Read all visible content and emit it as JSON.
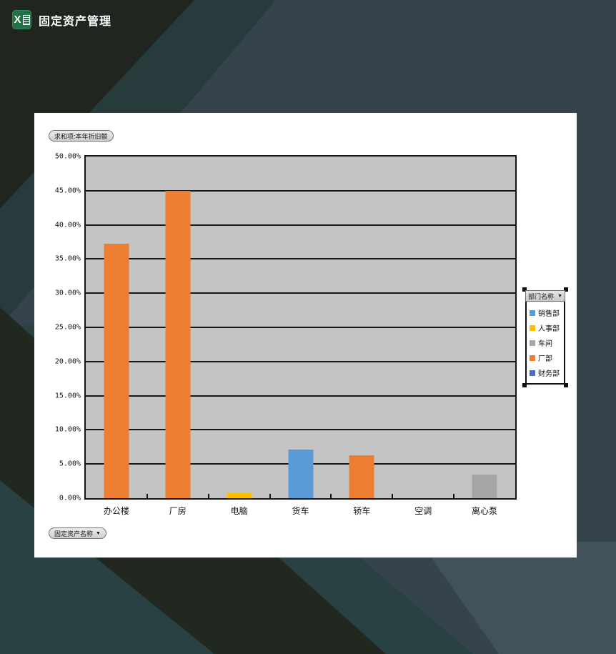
{
  "header": {
    "title": "固定资产管理"
  },
  "icons": {
    "dropdown_arrow": "▼",
    "excel_x": "X"
  },
  "chart": {
    "value_field_button": "求和项:本年折旧额",
    "axis_field_button": "固定资产名称",
    "legend": {
      "field_button": "部门名称",
      "items": [
        {
          "label": "销售部",
          "color": "#5B9BD5"
        },
        {
          "label": "人事部",
          "color": "#FFC000"
        },
        {
          "label": "车间",
          "color": "#A6A6A6"
        },
        {
          "label": "厂部",
          "color": "#ED7D31"
        },
        {
          "label": "财务部",
          "color": "#4472C4"
        }
      ]
    }
  },
  "chart_data": {
    "type": "bar",
    "title": "",
    "categories": [
      "办公楼",
      "厂房",
      "电脑",
      "货车",
      "轿车",
      "空调",
      "离心泵"
    ],
    "values": [
      37.2,
      45.0,
      0.8,
      7.1,
      6.3,
      0,
      3.5
    ],
    "bar_colors": [
      "#ED7D31",
      "#ED7D31",
      "#FFC000",
      "#5B9BD5",
      "#ED7D31",
      null,
      "#A6A6A6"
    ],
    "bar_departments": [
      "厂部",
      "厂部",
      "人事部",
      "销售部",
      "厂部",
      "",
      "车间"
    ],
    "xlabel": "固定资产名称",
    "ylabel": "求和项:本年折旧额",
    "ylim": [
      0,
      50
    ],
    "ytick_step": 5,
    "yticks": [
      "50.00%",
      "45.00%",
      "40.00%",
      "35.00%",
      "30.00%",
      "25.00%",
      "20.00%",
      "15.00%",
      "10.00%",
      "5.00%",
      "0.00%"
    ],
    "grid": true,
    "legend_position": "right",
    "plot_bg": "#C4C4C4",
    "colors": {
      "accent_orange": "#ED7D31",
      "accent_blue": "#5B9BD5",
      "accent_yellow": "#FFC000",
      "accent_gray": "#A6A6A6",
      "accent_dark_blue": "#4472C4"
    }
  }
}
